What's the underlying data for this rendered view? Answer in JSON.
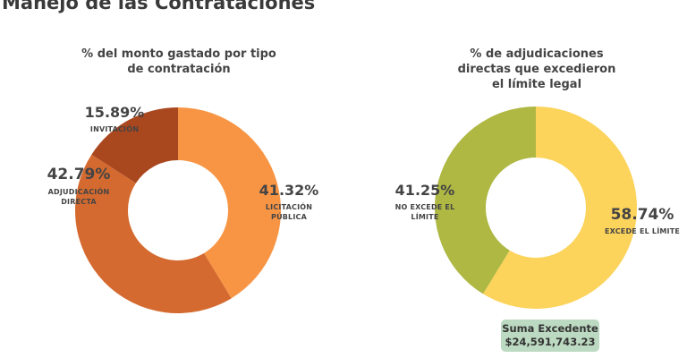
{
  "page_title": "Manejo de las Contrataciones",
  "chart_data": [
    {
      "type": "pie",
      "donut": true,
      "title": "% del monto gastado por tipo de contratación",
      "slices": [
        {
          "label": "LICITACIÓN PÚBLICA",
          "value": 41.32,
          "value_label": "41.32%",
          "color": "#F79544"
        },
        {
          "label": "ADJUDICACIÓN DIRECTA",
          "value": 42.79,
          "value_label": "42.79%",
          "color": "#D46A2F"
        },
        {
          "label": "INVITACIÓN",
          "value": 15.89,
          "value_label": "15.89%",
          "color": "#A9471F"
        }
      ]
    },
    {
      "type": "pie",
      "donut": true,
      "title": "% de adjudicaciones directas que excedieron el límite legal",
      "slices": [
        {
          "label": "EXCEDE EL LÍMITE",
          "value": 58.74,
          "value_label": "58.74%",
          "color": "#FCD35B"
        },
        {
          "label": "NO EXCEDE EL LÍMITE",
          "value": 41.25,
          "value_label": "41.25%",
          "color": "#AEB843"
        }
      ],
      "annotation": {
        "label": "Suma Excedente",
        "value": "$24,591,743.23"
      }
    }
  ]
}
